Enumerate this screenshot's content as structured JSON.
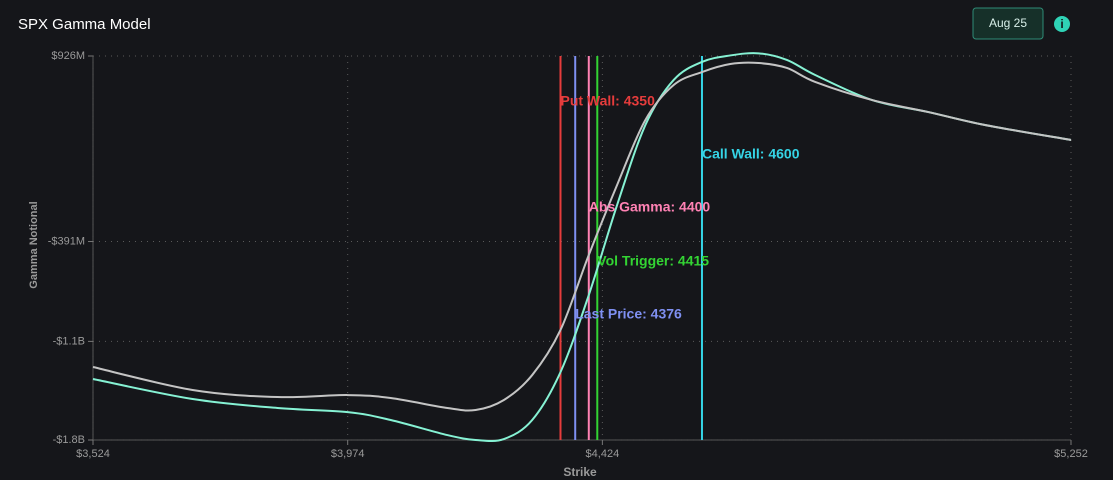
{
  "header": {
    "title": "SPX Gamma Model",
    "date_button": "Aug 25"
  },
  "chart_data": {
    "type": "line",
    "xlabel": "Strike",
    "ylabel": "Gamma Notional",
    "x": [
      3524,
      3700,
      3850,
      3974,
      4050,
      4150,
      4200,
      4250,
      4300,
      4350,
      4400,
      4450,
      4500,
      4550,
      4600,
      4650,
      4700,
      4750,
      4800,
      4900,
      5000,
      5100,
      5252
    ],
    "series": [
      {
        "color": "#86f2d4",
        "values": [
          -1367000000,
          -1509000000,
          -1573000000,
          -1602000000,
          -1658000000,
          -1765000000,
          -1800000000,
          -1793000000,
          -1658000000,
          -1318000000,
          -771000000,
          -132000000,
          436000000,
          756000000,
          884000000,
          930000000,
          945000000,
          898000000,
          791000000,
          614000000,
          528000000,
          436000000,
          330000000
        ]
      },
      {
        "color": "#c4c4c4",
        "values": [
          -1282000000,
          -1445000000,
          -1495000000,
          -1481000000,
          -1502000000,
          -1573000000,
          -1587000000,
          -1516000000,
          -1339000000,
          -1019000000,
          -487000000,
          10000000,
          472000000,
          720000000,
          812000000,
          869000000,
          876000000,
          841000000,
          742000000,
          614000000,
          528000000,
          436000000,
          330000000
        ]
      }
    ],
    "markers": [
      {
        "label": "Put Wall: 4350",
        "value": 4350,
        "color": "#e63c3c"
      },
      {
        "label": "Call Wall: 4600",
        "value": 4600,
        "color": "#35d4e6"
      },
      {
        "label": "Abs Gamma: 4400",
        "value": 4400,
        "color": "#ff82b4"
      },
      {
        "label": "Vol Trigger: 4415",
        "value": 4415,
        "color": "#33d433"
      },
      {
        "label": "Last Price: 4376",
        "value": 4376,
        "color": "#7f90f2"
      }
    ],
    "xlim": [
      3524,
      5252
    ],
    "xticks": [
      {
        "value": 3524,
        "label": "$3,524"
      },
      {
        "value": 3974,
        "label": "$3,974"
      },
      {
        "value": 4424,
        "label": "$4,424"
      },
      {
        "value": 5252,
        "label": "$5,252"
      }
    ],
    "ylim": [
      -1800000000,
      926000000
    ],
    "yticks": [
      {
        "value": 926000000,
        "label": "$926M"
      },
      {
        "value": -391000000,
        "label": "-$391M"
      },
      {
        "value": -1100000000,
        "label": "-$1.1B"
      },
      {
        "value": -1800000000,
        "label": "-$1.8B"
      }
    ],
    "grid": true
  }
}
